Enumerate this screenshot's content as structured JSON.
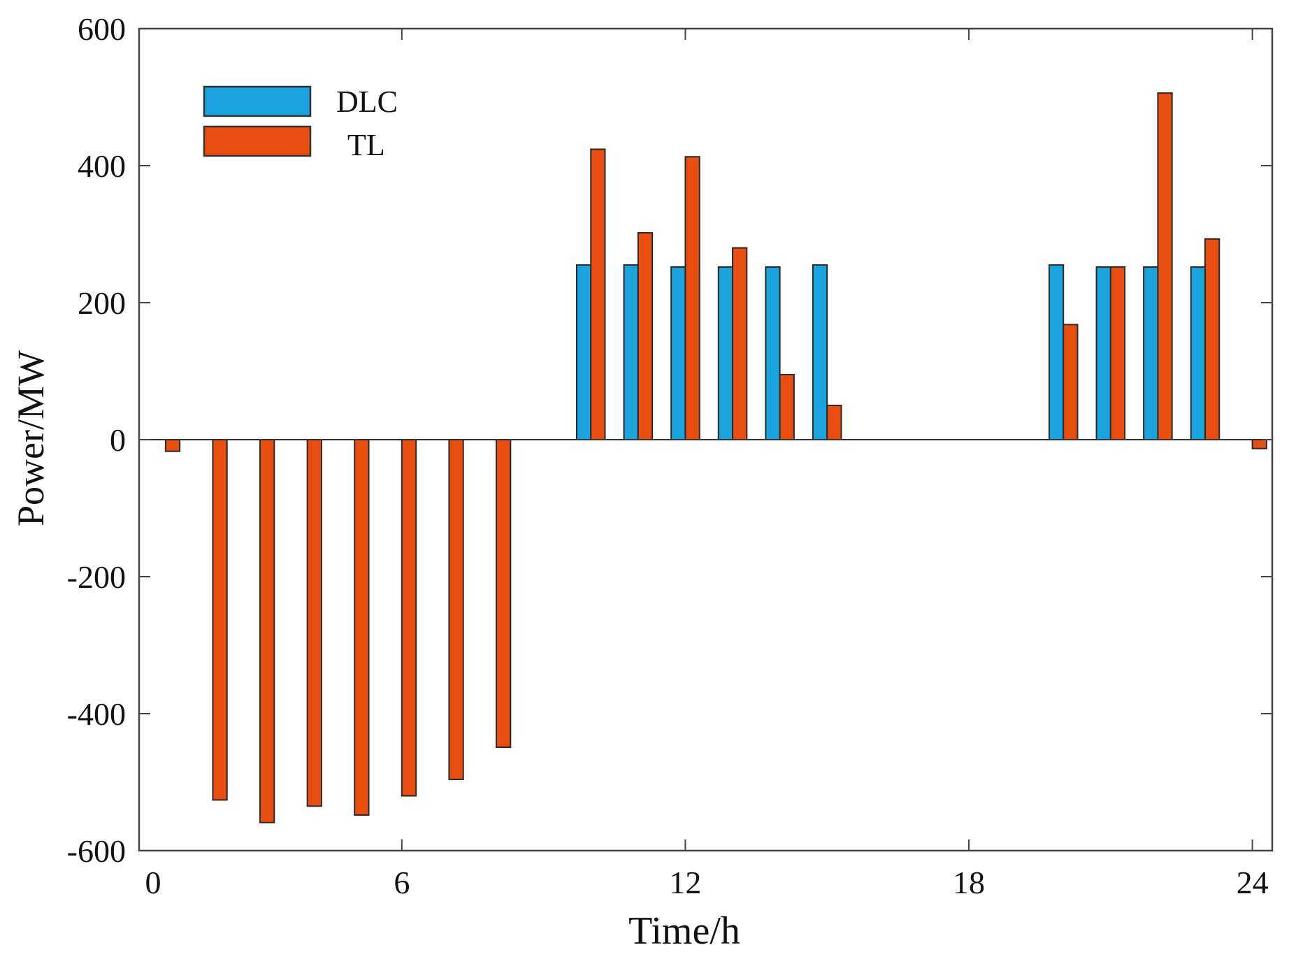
{
  "chart_data": {
    "type": "bar",
    "xlabel": "Time/h",
    "ylabel": "Power/MW",
    "x": [
      1,
      2,
      3,
      4,
      5,
      6,
      7,
      8,
      9,
      10,
      11,
      12,
      13,
      14,
      15,
      16,
      17,
      18,
      19,
      20,
      21,
      22,
      23,
      24
    ],
    "series": [
      {
        "name": "DLC",
        "color": "#1AA3DC",
        "values": [
          0,
          0,
          0,
          0,
          0,
          0,
          0,
          0,
          0,
          255,
          255,
          252,
          252,
          252,
          255,
          0,
          0,
          0,
          0,
          255,
          252,
          252,
          252,
          0
        ]
      },
      {
        "name": "TL",
        "color": "#E84E0F",
        "values": [
          -17,
          -526,
          -559,
          -535,
          -548,
          -520,
          -496,
          -449,
          0,
          424,
          302,
          413,
          280,
          95,
          50,
          0,
          0,
          0,
          0,
          168,
          252,
          506,
          293,
          -13
        ]
      }
    ],
    "xlim": [
      0.44,
      24.42
    ],
    "ylim": [
      -600,
      600
    ],
    "xticks": [
      0,
      6,
      12,
      18,
      24
    ],
    "yticks": [
      600,
      400,
      200,
      0,
      -200,
      -400,
      -600
    ],
    "bar_width_hours": 0.3,
    "grid": false
  }
}
